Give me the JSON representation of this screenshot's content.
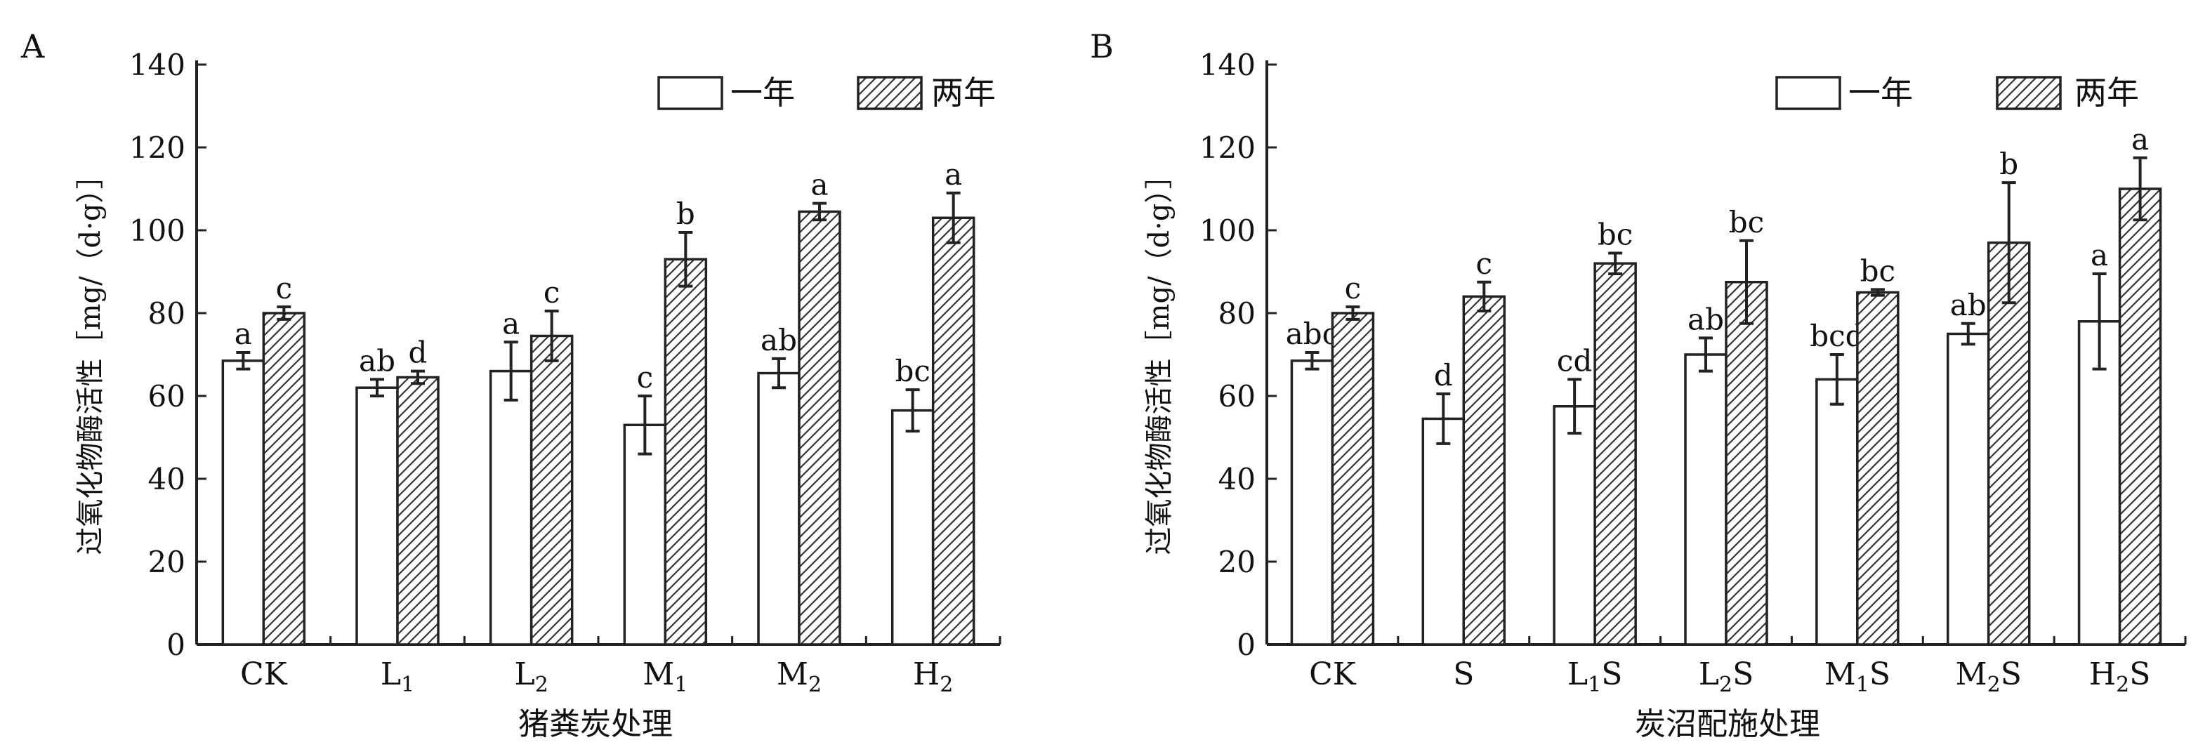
{
  "chart_data": [
    {
      "panel_label": "A",
      "type": "bar",
      "xlabel": "猪粪炭处理",
      "ylabel": "过氧化物酶活性［mg/（d·g）］",
      "ylim": [
        0,
        140
      ],
      "yticks": [
        0,
        20,
        40,
        60,
        80,
        100,
        120,
        140
      ],
      "categories": [
        {
          "base": "CK",
          "sub": ""
        },
        {
          "base": "L",
          "sub": "1"
        },
        {
          "base": "L",
          "sub": "2"
        },
        {
          "base": "M",
          "sub": "1"
        },
        {
          "base": "M",
          "sub": "2"
        },
        {
          "base": "H",
          "sub": "2"
        }
      ],
      "legend_position": "top-right",
      "series": [
        {
          "name": "一年",
          "pattern": "open",
          "values": [
            68.5,
            62,
            66,
            53,
            65.5,
            56.5
          ],
          "errors": [
            2,
            2,
            7,
            7,
            3.5,
            5
          ],
          "labels": [
            "a",
            "ab",
            "a",
            "c",
            "ab",
            "bc"
          ]
        },
        {
          "name": "两年",
          "pattern": "hatched",
          "values": [
            80,
            64.5,
            74.5,
            93,
            104.5,
            103
          ],
          "errors": [
            1.5,
            1.5,
            6,
            6.5,
            2,
            6
          ],
          "labels": [
            "c",
            "d",
            "c",
            "b",
            "a",
            "a"
          ]
        }
      ]
    },
    {
      "panel_label": "B",
      "type": "bar",
      "xlabel": "炭沼配施处理",
      "ylabel": "过氧化物酶活性［mg/（d·g）］",
      "ylim": [
        0,
        140
      ],
      "yticks": [
        0,
        20,
        40,
        60,
        80,
        100,
        120,
        140
      ],
      "categories": [
        {
          "base": "CK",
          "sub": "",
          "post": ""
        },
        {
          "base": "S",
          "sub": "",
          "post": ""
        },
        {
          "base": "L",
          "sub": "1",
          "post": "S"
        },
        {
          "base": "L",
          "sub": "2",
          "post": "S"
        },
        {
          "base": "M",
          "sub": "1",
          "post": "S"
        },
        {
          "base": "M",
          "sub": "2",
          "post": "S"
        },
        {
          "base": "H",
          "sub": "2",
          "post": "S"
        }
      ],
      "legend_position": "top-right",
      "series": [
        {
          "name": "一年",
          "pattern": "open",
          "values": [
            68.5,
            54.5,
            57.5,
            70,
            64,
            75,
            78
          ],
          "errors": [
            2,
            6,
            6.5,
            4,
            6,
            2.5,
            11.5
          ],
          "labels": [
            "abc",
            "d",
            "cd",
            "ab",
            "bcd",
            "ab",
            "a"
          ]
        },
        {
          "name": "两年",
          "pattern": "hatched",
          "values": [
            80,
            84,
            92,
            87.5,
            85,
            97,
            110
          ],
          "errors": [
            1.5,
            3.5,
            2.5,
            10,
            0.7,
            14.5,
            7.5
          ],
          "labels": [
            "c",
            "c",
            "bc",
            "bc",
            "bc",
            "b",
            "a"
          ]
        }
      ]
    }
  ]
}
